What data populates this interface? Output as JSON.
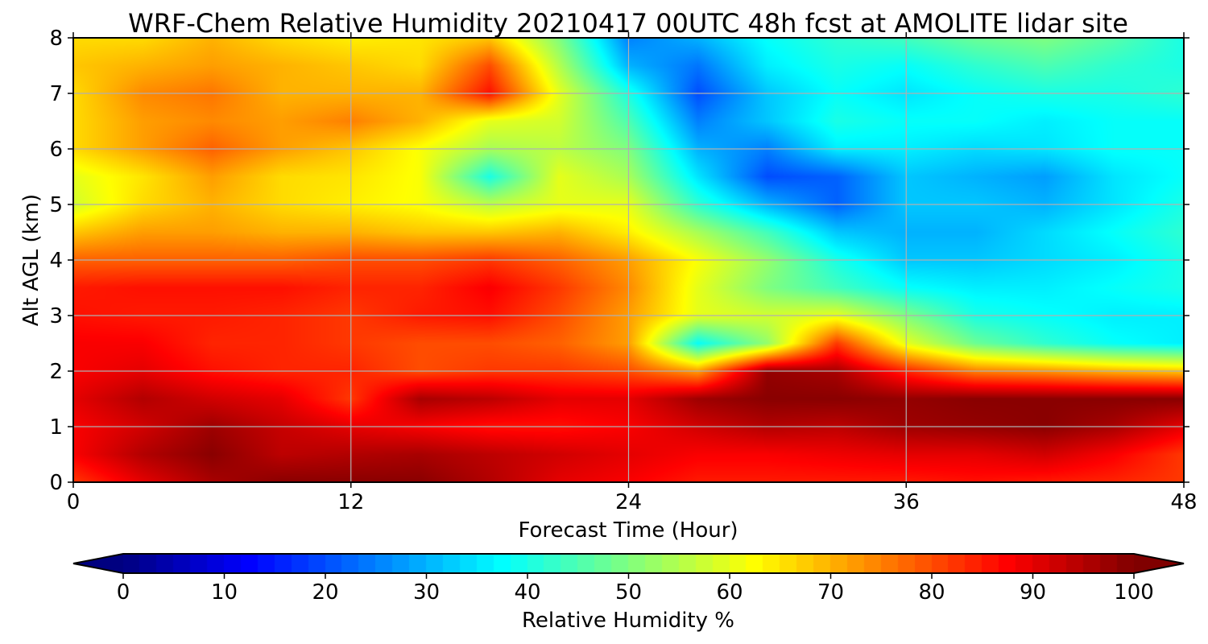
{
  "chart_data": {
    "type": "heatmap",
    "title": "WRF-Chem Relative Humidity 20210417 00UTC 48h fcst at AMOLITE lidar site",
    "xlabel": "Forecast Time (Hour)",
    "ylabel": "Alt AGL (km)",
    "xlim": [
      0,
      48
    ],
    "ylim": [
      0,
      8
    ],
    "x_ticks": [
      "0",
      "12",
      "24",
      "36",
      "48"
    ],
    "y_ticks": [
      "0",
      "1",
      "2",
      "3",
      "4",
      "5",
      "6",
      "7",
      "8"
    ],
    "grid": true,
    "colormap": "jet",
    "colorbar": {
      "label": "Relative Humidity %",
      "range": [
        0,
        100
      ],
      "ticks": [
        "0",
        "10",
        "20",
        "30",
        "40",
        "50",
        "60",
        "70",
        "80",
        "90",
        "100"
      ],
      "extend": "both",
      "orientation": "horizontal"
    },
    "x": [
      0,
      3,
      6,
      9,
      12,
      15,
      18,
      21,
      24,
      27,
      30,
      33,
      36,
      39,
      42,
      45,
      48
    ],
    "y": [
      0,
      0.5,
      1,
      1.5,
      2,
      2.5,
      3,
      3.5,
      4,
      4.5,
      5,
      5.5,
      6,
      6.5,
      7,
      7.5,
      8
    ],
    "z": [
      [
        82,
        90,
        96,
        99,
        99,
        99,
        95,
        90,
        88,
        85,
        85,
        85,
        85,
        86,
        85,
        84,
        82
      ],
      [
        88,
        95,
        99,
        94,
        95,
        96,
        94,
        92,
        90,
        88,
        88,
        89,
        90,
        90,
        92,
        88,
        82
      ],
      [
        88,
        92,
        97,
        93,
        90,
        88,
        86,
        86,
        88,
        92,
        95,
        94,
        97,
        98,
        99,
        96,
        90
      ],
      [
        90,
        95,
        92,
        90,
        82,
        96,
        94,
        90,
        90,
        97,
        99,
        99,
        98,
        99,
        99,
        99,
        99
      ],
      [
        88,
        90,
        86,
        84,
        84,
        80,
        82,
        82,
        80,
        72,
        98,
        96,
        84,
        75,
        73,
        70,
        68
      ],
      [
        88,
        88,
        84,
        84,
        82,
        80,
        80,
        78,
        72,
        38,
        52,
        82,
        60,
        48,
        42,
        38,
        36
      ],
      [
        86,
        85,
        85,
        84,
        82,
        85,
        86,
        80,
        72,
        60,
        58,
        60,
        50,
        40,
        38,
        36,
        36
      ],
      [
        85,
        86,
        86,
        86,
        84,
        84,
        88,
        82,
        74,
        60,
        50,
        44,
        38,
        36,
        36,
        38,
        40
      ],
      [
        78,
        78,
        78,
        78,
        80,
        80,
        82,
        78,
        72,
        62,
        52,
        40,
        32,
        32,
        34,
        36,
        40
      ],
      [
        68,
        72,
        72,
        70,
        70,
        68,
        68,
        70,
        64,
        54,
        44,
        32,
        30,
        30,
        34,
        38,
        42
      ],
      [
        58,
        66,
        70,
        66,
        64,
        62,
        56,
        60,
        60,
        42,
        30,
        22,
        32,
        32,
        30,
        35,
        40
      ],
      [
        60,
        65,
        72,
        66,
        65,
        62,
        40,
        60,
        54,
        35,
        20,
        22,
        32,
        30,
        28,
        35,
        38
      ],
      [
        66,
        72,
        78,
        72,
        68,
        62,
        54,
        56,
        50,
        30,
        25,
        36,
        36,
        34,
        35,
        38,
        38
      ],
      [
        66,
        72,
        74,
        72,
        75,
        70,
        60,
        58,
        45,
        25,
        32,
        40,
        38,
        38,
        36,
        38,
        38
      ],
      [
        66,
        74,
        76,
        70,
        70,
        70,
        86,
        60,
        40,
        20,
        32,
        38,
        35,
        38,
        40,
        40,
        42
      ],
      [
        68,
        70,
        72,
        70,
        68,
        66,
        80,
        55,
        30,
        24,
        36,
        40,
        38,
        42,
        45,
        42,
        40
      ],
      [
        66,
        66,
        70,
        66,
        64,
        65,
        68,
        50,
        25,
        30,
        38,
        42,
        44,
        48,
        50,
        46,
        40
      ]
    ]
  }
}
